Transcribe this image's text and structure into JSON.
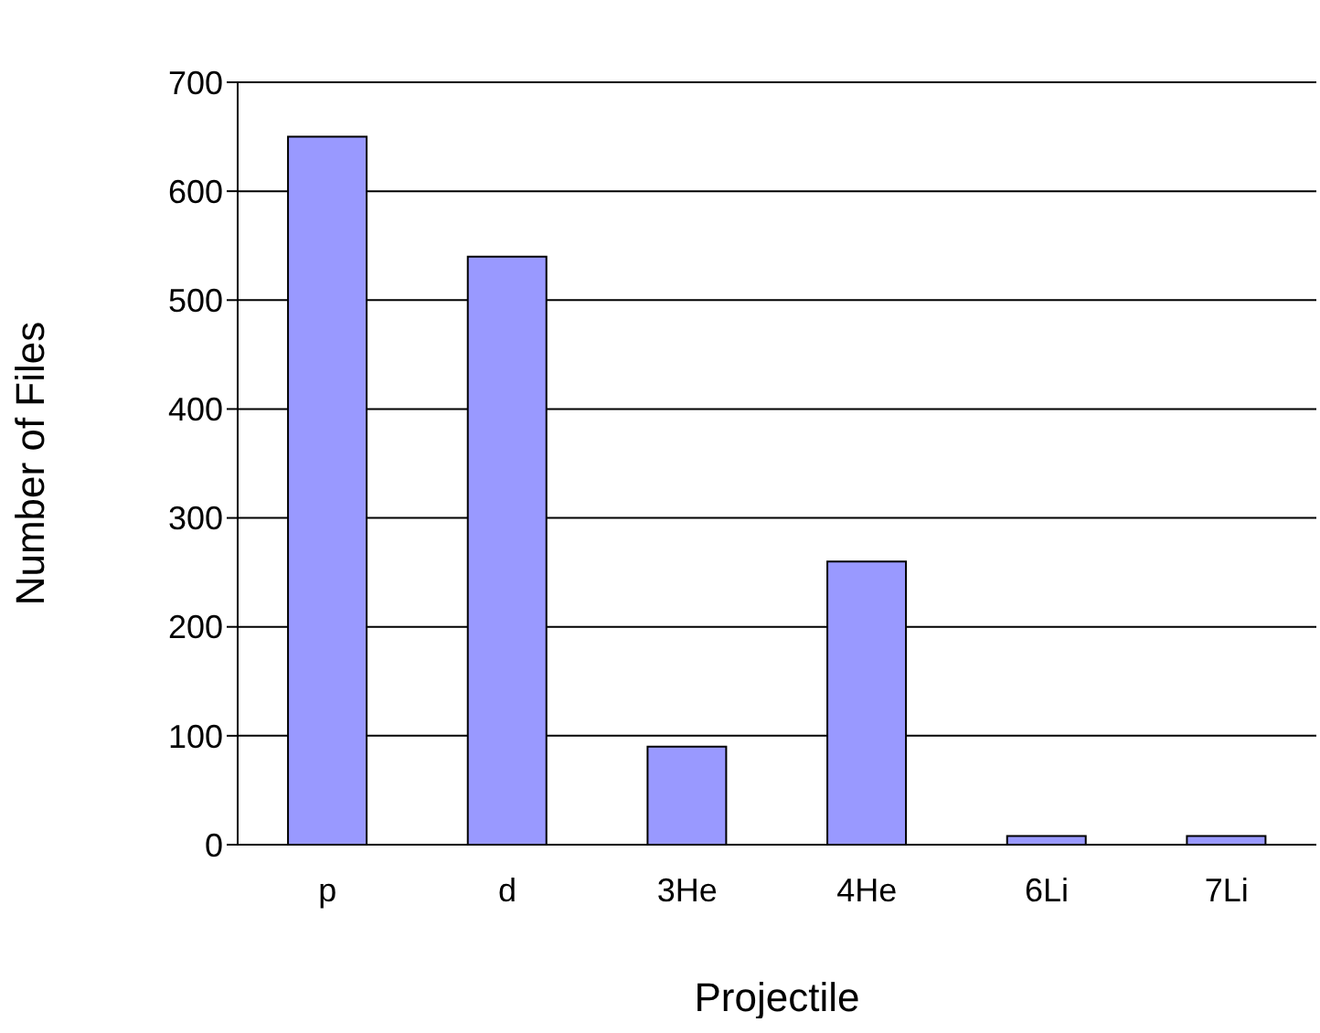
{
  "chart_data": {
    "type": "bar",
    "xlabel": "Projectile",
    "ylabel": "Number of Files",
    "categories": [
      "p",
      "d",
      "3He",
      "4He",
      "6Li",
      "7Li"
    ],
    "values": [
      650,
      540,
      90,
      260,
      8,
      8
    ],
    "color": "#9999ff",
    "ylim": [
      0,
      700
    ],
    "yticks": [
      0,
      100,
      200,
      300,
      400,
      500,
      600,
      700
    ],
    "grid": "y"
  }
}
